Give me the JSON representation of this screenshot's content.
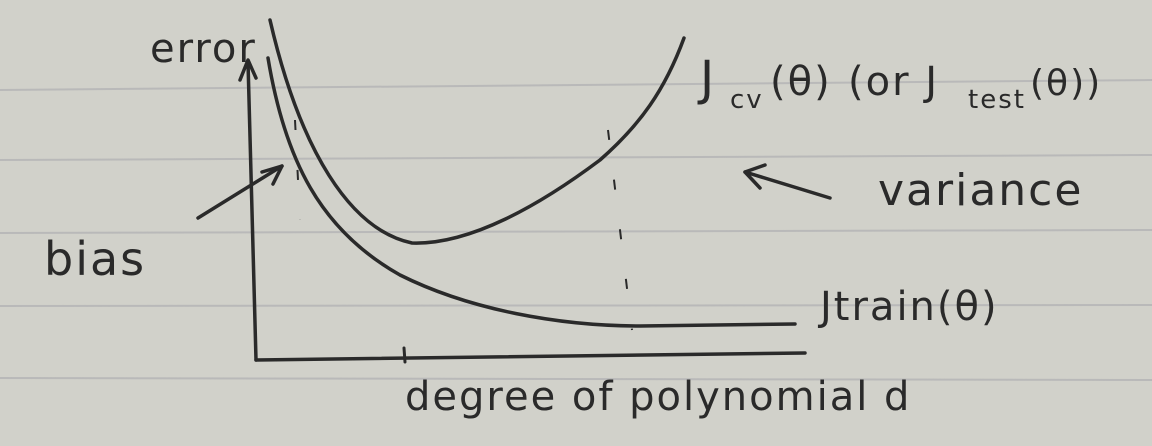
{
  "diagram": {
    "y_axis_label": "error",
    "x_axis_label": "degree of polynomial d",
    "curves": [
      {
        "id": "cv",
        "label_main": "J",
        "label_sub": "cv",
        "label_arg": "(θ)",
        "label_note": "(or J",
        "label_note_sub": "test",
        "label_note_end": "(θ))"
      },
      {
        "id": "train",
        "label": "Jtrain(θ)"
      }
    ],
    "annotations": [
      {
        "id": "bias",
        "text": "bias"
      },
      {
        "id": "variance",
        "text": "variance"
      }
    ],
    "colors": {
      "paper": "#d1d1ca",
      "ink": "#2a2a2a",
      "rule_line": "#b9b9b9"
    }
  }
}
